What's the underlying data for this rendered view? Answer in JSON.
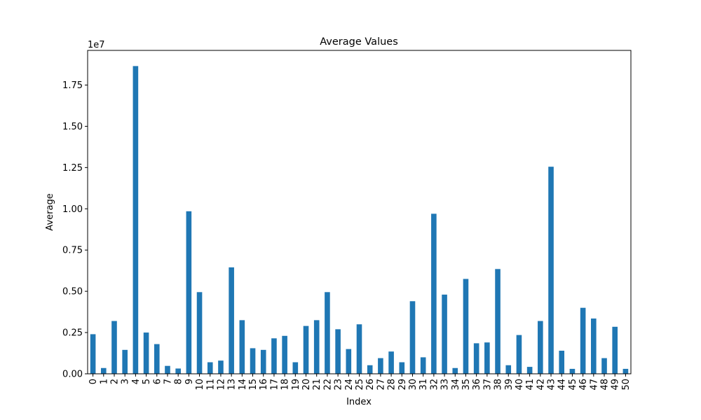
{
  "chart_data": {
    "type": "bar",
    "title": "Average Values",
    "xlabel": "Index",
    "ylabel": "Average",
    "y_scale_label": "1e7",
    "categories": [
      "0",
      "1",
      "2",
      "3",
      "4",
      "5",
      "6",
      "7",
      "8",
      "9",
      "10",
      "11",
      "12",
      "13",
      "14",
      "15",
      "16",
      "17",
      "18",
      "19",
      "20",
      "21",
      "22",
      "23",
      "24",
      "25",
      "26",
      "27",
      "28",
      "29",
      "30",
      "31",
      "32",
      "33",
      "34",
      "35",
      "36",
      "37",
      "38",
      "39",
      "40",
      "41",
      "42",
      "43",
      "44",
      "45",
      "46",
      "47",
      "48",
      "49",
      "50"
    ],
    "values": [
      2400000,
      350000,
      3200000,
      1450000,
      18650000,
      2500000,
      1800000,
      480000,
      320000,
      9850000,
      4950000,
      700000,
      800000,
      6450000,
      3250000,
      1550000,
      1450000,
      2150000,
      2300000,
      700000,
      2900000,
      3250000,
      4950000,
      2700000,
      1500000,
      3000000,
      520000,
      950000,
      1350000,
      700000,
      4400000,
      1000000,
      9700000,
      4800000,
      350000,
      5750000,
      1850000,
      1900000,
      6350000,
      520000,
      2350000,
      420000,
      3200000,
      12550000,
      1400000,
      300000,
      4000000,
      3350000,
      950000,
      2850000,
      300000
    ],
    "ylim": [
      0,
      19600000
    ],
    "yticks": [
      0,
      2500000,
      5000000,
      7500000,
      10000000,
      12500000,
      15000000,
      17500000
    ],
    "ytick_labels": [
      "0.00",
      "0.25",
      "0.50",
      "0.75",
      "1.00",
      "1.25",
      "1.50",
      "1.75"
    ],
    "bar_color": "#1f77b4",
    "grid": false,
    "legend": false
  }
}
